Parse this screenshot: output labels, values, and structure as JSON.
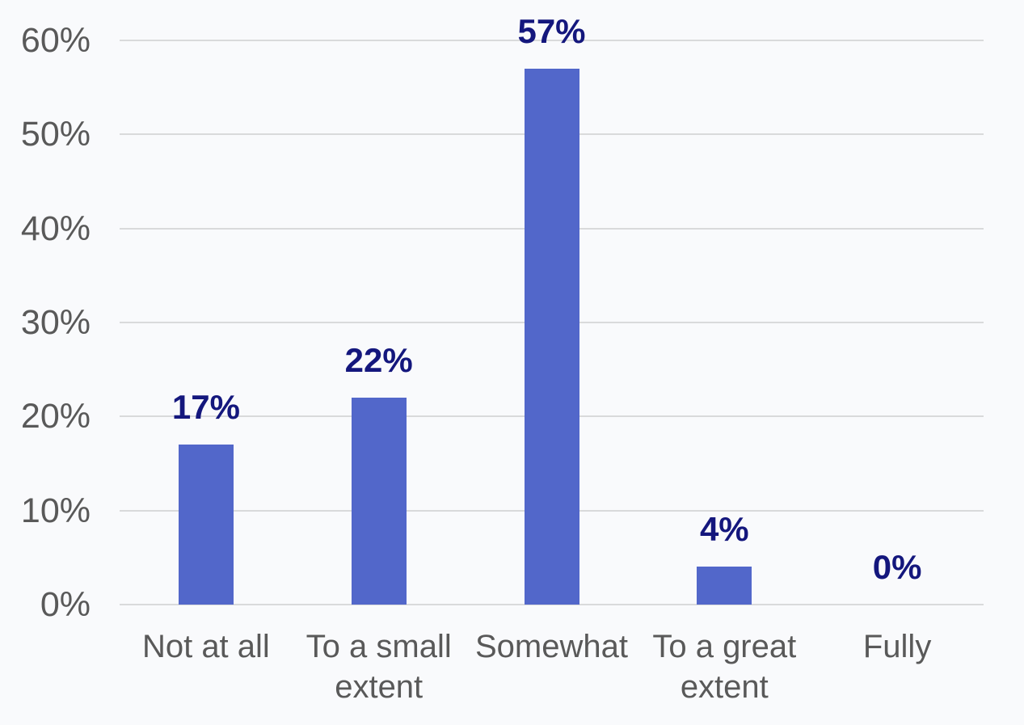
{
  "chart_data": {
    "type": "bar",
    "categories": [
      "Not at all",
      "To a small extent",
      "Somewhat",
      "To a great extent",
      "Fully"
    ],
    "values": [
      17,
      22,
      57,
      4,
      0
    ],
    "data_labels": [
      "17%",
      "22%",
      "57%",
      "4%",
      "0%"
    ],
    "title": "",
    "xlabel": "",
    "ylabel": "",
    "ylim": [
      0,
      60
    ],
    "yticks": [
      0,
      10,
      20,
      30,
      40,
      50,
      60
    ],
    "ytick_labels": [
      "0%",
      "10%",
      "20%",
      "30%",
      "40%",
      "50%",
      "60%"
    ],
    "grid": true,
    "legend": false,
    "colors": {
      "bar_fill": "#5267CA",
      "data_label": "#14177D",
      "axis_label": "#595959",
      "gridline": "#D9DADB",
      "background": "#F9FAFC"
    }
  }
}
